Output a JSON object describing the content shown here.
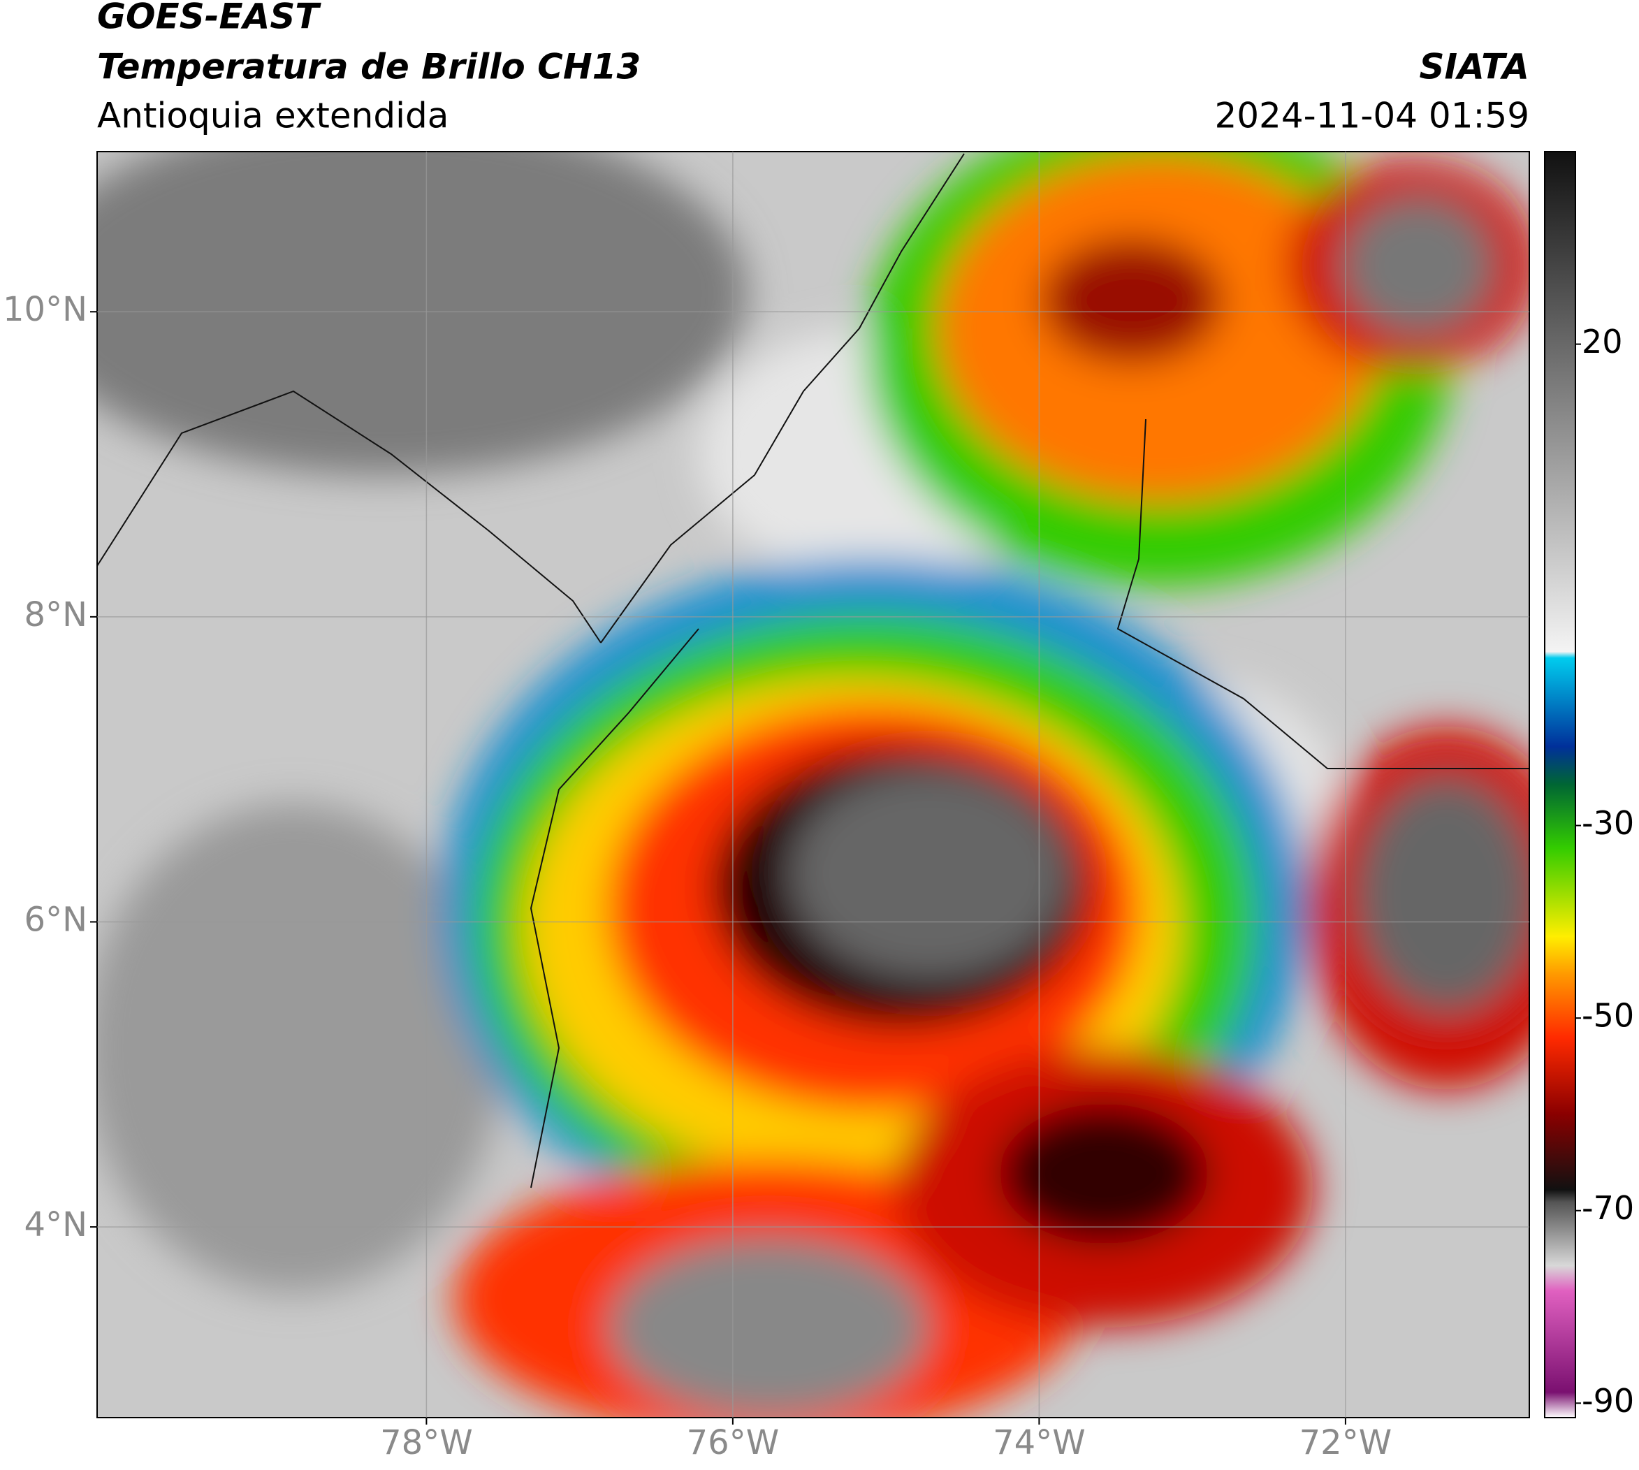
{
  "chart_data": {
    "type": "map",
    "title": "GOES-EAST",
    "subtitle": "Temperatura de Brillo CH13",
    "region": "Antioquia extendida",
    "source": "SIATA",
    "timestamp": "2024-11-04 01:59",
    "xlim": [
      -80.15,
      -70.8
    ],
    "ylim": [
      2.75,
      11.05
    ],
    "xticks": [
      {
        "value": -78,
        "label": "78°W"
      },
      {
        "value": -76,
        "label": "76°W"
      },
      {
        "value": -74,
        "label": "74°W"
      },
      {
        "value": -72,
        "label": "72°W"
      }
    ],
    "yticks": [
      {
        "value": 10,
        "label": "10°N"
      },
      {
        "value": 8,
        "label": "8°N"
      },
      {
        "value": 6,
        "label": "6°N"
      },
      {
        "value": 4,
        "label": "4°N"
      }
    ],
    "grid": true,
    "colorbar": {
      "lim": [
        -91.5,
        40
      ],
      "ticks": [
        20,
        -30,
        -50,
        -70,
        -90
      ]
    }
  }
}
